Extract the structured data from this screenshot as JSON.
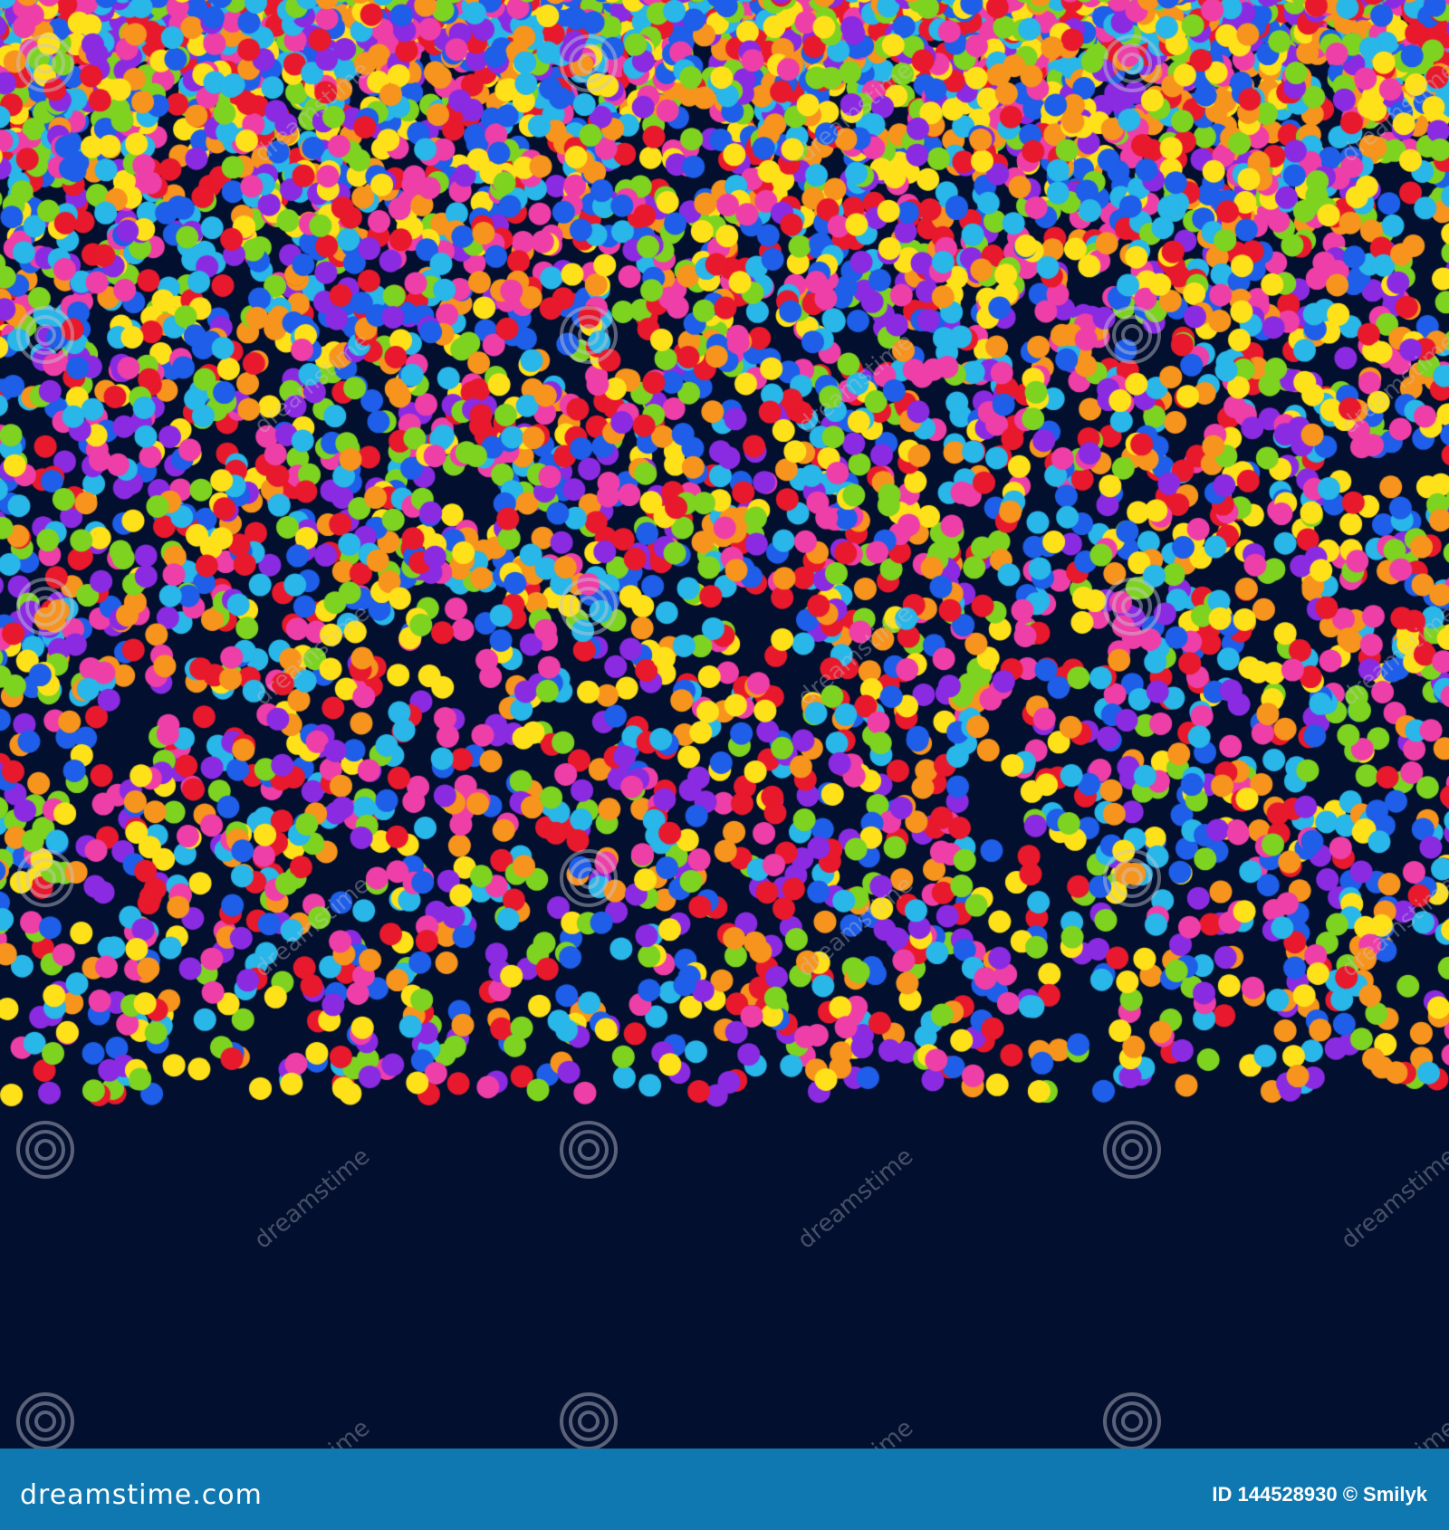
{
  "image": {
    "background_color": "#020f2e",
    "confetti_colors": [
      "#e8192c",
      "#f7941d",
      "#ffe11a",
      "#7ed321",
      "#29b6e8",
      "#1e5ee8",
      "#8a2be2",
      "#ee3fa8"
    ],
    "watermark_text": "dreamstime"
  },
  "footer": {
    "background_color": "#0f78b0",
    "logo": "dreamstime.com",
    "credit": "ID 144528930 © Smilyk"
  }
}
